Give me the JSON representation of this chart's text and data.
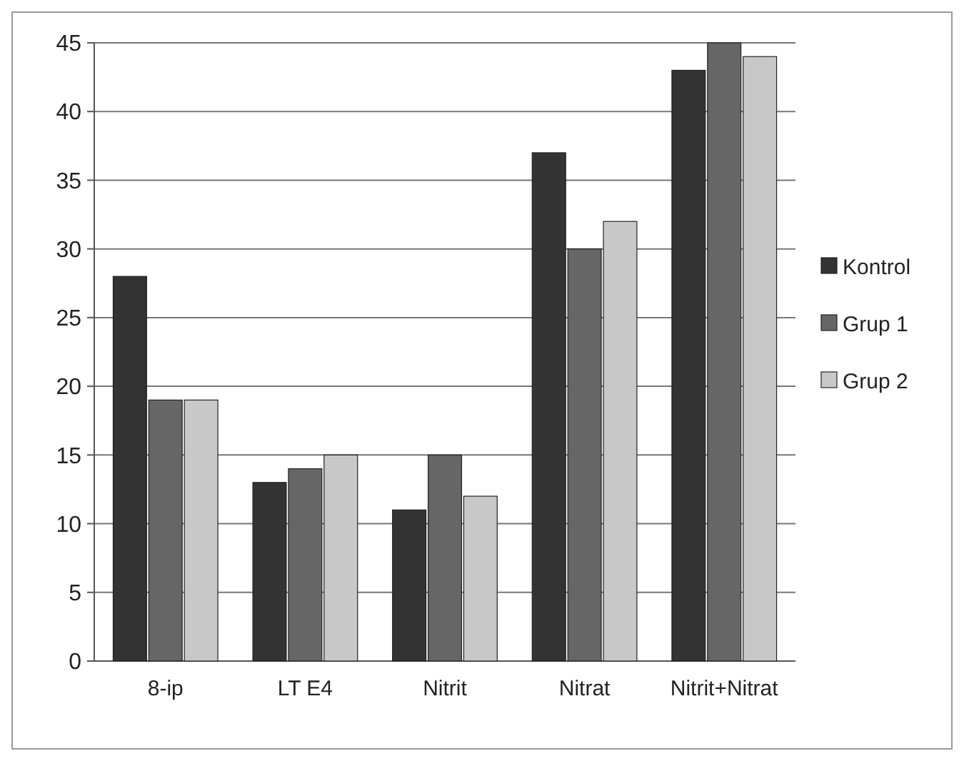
{
  "chart_data": {
    "type": "bar",
    "categories": [
      "8-ip",
      "LT E4",
      "Nitrit",
      "Nitrat",
      "Nitrit+Nitrat"
    ],
    "series": [
      {
        "name": "Kontrol",
        "color": "#333333",
        "values": [
          28,
          13,
          11,
          37,
          43
        ]
      },
      {
        "name": "Grup 1",
        "color": "#666666",
        "values": [
          19,
          14,
          15,
          30,
          45
        ]
      },
      {
        "name": "Grup 2",
        "color": "#c8c8c8",
        "values": [
          19,
          15,
          12,
          32,
          44
        ]
      }
    ],
    "ylim": [
      0,
      45
    ],
    "yticks": [
      0,
      5,
      10,
      15,
      20,
      25,
      30,
      35,
      40,
      45
    ],
    "grid": "y",
    "legend": "right"
  }
}
